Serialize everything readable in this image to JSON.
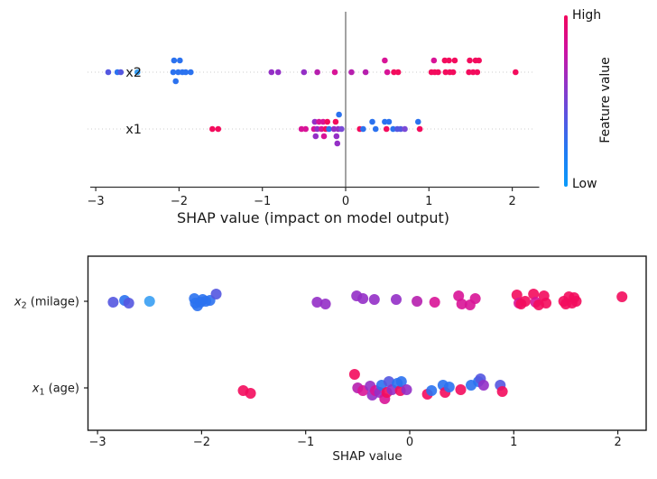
{
  "colorbar": {
    "high": "High",
    "low": "Low",
    "title": "Feature value"
  },
  "palette": {
    "b": "#2b72ef",
    "lb": "#389ef3",
    "bv": "#5457e0",
    "v": "#7a4ad6",
    "p": "#942fc6",
    "mp": "#b61fae",
    "m": "#d81497",
    "c": "#f30c5d"
  },
  "colorbar_gradient": [
    "#f2065c",
    "#cf11a0",
    "#9234c6",
    "#5656e2",
    "#1f7cf4",
    "#0a9bfa"
  ],
  "chart_data": [
    {
      "type": "scatter",
      "title": "",
      "xlabel": "SHAP value (impact on model output)",
      "ylabel": "",
      "x_ticks": [
        -3,
        -2,
        -1,
        0,
        1,
        2
      ],
      "xlim": [
        -3.07,
        2.32
      ],
      "rows": [
        "x2",
        "x1"
      ],
      "zero_line_x": 0,
      "grid": "dotted-row-guides",
      "point_format": "[shap_value, color_key, y_offset_px]",
      "series": [
        {
          "name": "x2",
          "points": [
            [
              -2.85,
              "bv",
              0
            ],
            [
              -2.74,
              "b",
              0
            ],
            [
              -2.7,
              "bv",
              0
            ],
            [
              -2.5,
              "lb",
              0
            ],
            [
              -2.07,
              "b",
              0
            ],
            [
              -2.06,
              "b",
              -13
            ],
            [
              -2.04,
              "b",
              10
            ],
            [
              -2.01,
              "b",
              0
            ],
            [
              -1.99,
              "b",
              -13
            ],
            [
              -1.96,
              "b",
              0
            ],
            [
              -1.92,
              "b",
              0
            ],
            [
              -1.86,
              "b",
              0
            ],
            [
              -0.89,
              "p",
              0
            ],
            [
              -0.81,
              "p",
              0
            ],
            [
              -0.5,
              "p",
              0
            ],
            [
              -0.34,
              "mp",
              0
            ],
            [
              -0.13,
              "m",
              0
            ],
            [
              0.07,
              "mp",
              0
            ],
            [
              0.24,
              "mp",
              0
            ],
            [
              0.47,
              "m",
              -13
            ],
            [
              0.5,
              "m",
              0
            ],
            [
              0.58,
              "c",
              0
            ],
            [
              0.63,
              "c",
              0
            ],
            [
              1.03,
              "c",
              0
            ],
            [
              1.06,
              "m",
              -13
            ],
            [
              1.07,
              "c",
              0
            ],
            [
              1.11,
              "c",
              0
            ],
            [
              1.19,
              "c",
              -13
            ],
            [
              1.2,
              "c",
              0
            ],
            [
              1.24,
              "c",
              -13
            ],
            [
              1.25,
              "c",
              0
            ],
            [
              1.29,
              "c",
              0
            ],
            [
              1.31,
              "c",
              -13
            ],
            [
              1.48,
              "c",
              0
            ],
            [
              1.49,
              "c",
              -13
            ],
            [
              1.53,
              "c",
              0
            ],
            [
              1.56,
              "c",
              -13
            ],
            [
              1.58,
              "c",
              0
            ],
            [
              1.6,
              "c",
              -13
            ],
            [
              2.04,
              "c",
              0
            ]
          ]
        },
        {
          "name": "x1",
          "points": [
            [
              -1.6,
              "c",
              0
            ],
            [
              -1.53,
              "c",
              0
            ],
            [
              -0.53,
              "m",
              0
            ],
            [
              -0.48,
              "m",
              0
            ],
            [
              -0.38,
              "m",
              0
            ],
            [
              -0.37,
              "p",
              -8
            ],
            [
              -0.36,
              "p",
              8
            ],
            [
              -0.34,
              "p",
              0
            ],
            [
              -0.32,
              "m",
              -8
            ],
            [
              -0.29,
              "m",
              0
            ],
            [
              -0.27,
              "m",
              -8
            ],
            [
              -0.26,
              "m",
              8
            ],
            [
              -0.24,
              "c",
              0
            ],
            [
              -0.22,
              "c",
              -8
            ],
            [
              -0.2,
              "b",
              0
            ],
            [
              -0.14,
              "p",
              0
            ],
            [
              -0.12,
              "c",
              -8
            ],
            [
              -0.11,
              "p",
              8
            ],
            [
              -0.1,
              "p",
              16
            ],
            [
              -0.09,
              "p",
              0
            ],
            [
              -0.08,
              "b",
              -16
            ],
            [
              -0.05,
              "v",
              0
            ],
            [
              0.17,
              "c",
              0
            ],
            [
              0.21,
              "b",
              0
            ],
            [
              0.32,
              "b",
              -8
            ],
            [
              0.36,
              "b",
              0
            ],
            [
              0.47,
              "b",
              -8
            ],
            [
              0.49,
              "c",
              0
            ],
            [
              0.52,
              "b",
              -8
            ],
            [
              0.57,
              "b",
              0
            ],
            [
              0.62,
              "bv",
              0
            ],
            [
              0.66,
              "bv",
              0
            ],
            [
              0.71,
              "v",
              0
            ],
            [
              0.87,
              "b",
              -8
            ],
            [
              0.89,
              "c",
              0
            ]
          ]
        }
      ]
    },
    {
      "type": "scatter",
      "title": "",
      "xlabel": "SHAP value",
      "ylabel": "",
      "x_ticks": [
        -3,
        -2,
        -1,
        0,
        1,
        2
      ],
      "xlim": [
        -3.09,
        2.27
      ],
      "rows": [
        {
          "base": "x",
          "sub": "2",
          "rest": " (milage)"
        },
        {
          "base": "x",
          "sub": "1",
          "rest": " (age)"
        }
      ],
      "point_format": "[shap_value, color_key, y_offset_px]",
      "series": [
        {
          "name": "x2 (milage)",
          "points": [
            [
              -2.85,
              "bv",
              1
            ],
            [
              -2.74,
              "b",
              -1
            ],
            [
              -2.7,
              "bv",
              2
            ],
            [
              -2.5,
              "lb",
              0
            ],
            [
              -2.07,
              "b",
              -3
            ],
            [
              -2.06,
              "b",
              2
            ],
            [
              -2.04,
              "b",
              5
            ],
            [
              -2.01,
              "b",
              1
            ],
            [
              -1.99,
              "b",
              -2
            ],
            [
              -1.96,
              "b",
              0
            ],
            [
              -1.92,
              "b",
              -1
            ],
            [
              -1.86,
              "bv",
              -8
            ],
            [
              -0.89,
              "p",
              1
            ],
            [
              -0.81,
              "p",
              3
            ],
            [
              -0.51,
              "p",
              -6
            ],
            [
              -0.45,
              "p",
              -3
            ],
            [
              -0.34,
              "p",
              -2
            ],
            [
              -0.13,
              "p",
              -2
            ],
            [
              0.07,
              "mp",
              0
            ],
            [
              0.24,
              "m",
              1
            ],
            [
              0.47,
              "m",
              -6
            ],
            [
              0.5,
              "m",
              3
            ],
            [
              0.58,
              "m",
              4
            ],
            [
              0.63,
              "m",
              -3
            ],
            [
              1.03,
              "c",
              -7
            ],
            [
              1.05,
              "m",
              2
            ],
            [
              1.07,
              "c",
              3
            ],
            [
              1.11,
              "c",
              0
            ],
            [
              1.19,
              "c",
              -8
            ],
            [
              1.21,
              "m",
              1
            ],
            [
              1.24,
              "c",
              4
            ],
            [
              1.29,
              "c",
              -6
            ],
            [
              1.31,
              "c",
              2
            ],
            [
              1.48,
              "c",
              0
            ],
            [
              1.5,
              "c",
              3
            ],
            [
              1.53,
              "c",
              -5
            ],
            [
              1.56,
              "c",
              2
            ],
            [
              1.58,
              "c",
              -4
            ],
            [
              1.6,
              "c",
              0
            ],
            [
              2.04,
              "c",
              -5
            ]
          ]
        },
        {
          "name": "x1 (age)",
          "points": [
            [
              -1.6,
              "c",
              3
            ],
            [
              -1.53,
              "c",
              6
            ],
            [
              -0.53,
              "c",
              -15
            ],
            [
              -0.5,
              "mp",
              0
            ],
            [
              -0.45,
              "m",
              3
            ],
            [
              -0.38,
              "p",
              -2
            ],
            [
              -0.36,
              "p",
              8
            ],
            [
              -0.33,
              "m",
              3
            ],
            [
              -0.29,
              "p",
              5
            ],
            [
              -0.27,
              "b",
              -3
            ],
            [
              -0.24,
              "m",
              12
            ],
            [
              -0.22,
              "c",
              5
            ],
            [
              -0.2,
              "bv",
              -7
            ],
            [
              -0.17,
              "p",
              2
            ],
            [
              -0.12,
              "b",
              -5
            ],
            [
              -0.09,
              "c",
              3
            ],
            [
              -0.08,
              "b",
              -7
            ],
            [
              -0.03,
              "p",
              2
            ],
            [
              0.17,
              "c",
              7
            ],
            [
              0.21,
              "b",
              3
            ],
            [
              0.32,
              "b",
              -3
            ],
            [
              0.34,
              "c",
              5
            ],
            [
              0.38,
              "b",
              -1
            ],
            [
              0.49,
              "c",
              2
            ],
            [
              0.59,
              "b",
              -3
            ],
            [
              0.66,
              "b",
              -7
            ],
            [
              0.68,
              "bv",
              -10
            ],
            [
              0.71,
              "p",
              -3
            ],
            [
              0.87,
              "bv",
              -3
            ],
            [
              0.89,
              "c",
              4
            ]
          ]
        }
      ]
    }
  ]
}
